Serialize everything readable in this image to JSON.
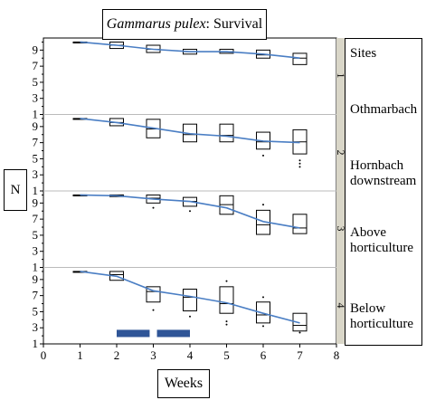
{
  "title": {
    "species": "Gammarus pulex",
    "rest": ": Survival"
  },
  "y_axis_label": "N",
  "x_axis_label": "Weeks",
  "legend": {
    "header": "Sites",
    "sites": [
      "Othmarbach",
      "Hornbach downstream",
      "Above horticulture",
      "Below horticulture"
    ]
  },
  "chart_data": {
    "type": "box",
    "x_ticks": [
      0,
      1,
      2,
      3,
      4,
      5,
      6,
      7,
      8
    ],
    "xlim": [
      0,
      8
    ],
    "y_ticks_per_panel": [
      1,
      3,
      5,
      7,
      9
    ],
    "y_tick_labels": [
      "1",
      "3",
      "5",
      "7",
      "9"
    ],
    "ylim": [
      1,
      10.5
    ],
    "panels": [
      {
        "strip_label": "1",
        "site": "Othmarbach",
        "boxes": [
          {
            "week": 1,
            "q1": 10,
            "median": 10,
            "q3": 10
          },
          {
            "week": 2,
            "q1": 9.2,
            "median": 9.6,
            "q3": 10
          },
          {
            "week": 3,
            "q1": 8.7,
            "median": 9.1,
            "q3": 9.6
          },
          {
            "week": 4,
            "q1": 8.5,
            "median": 8.8,
            "q3": 9.1
          },
          {
            "week": 5,
            "q1": 8.6,
            "median": 8.8,
            "q3": 9.1
          },
          {
            "week": 6,
            "q1": 8,
            "median": 8.4,
            "q3": 9
          },
          {
            "week": 7,
            "q1": 7.2,
            "median": 8,
            "q3": 8.6
          }
        ],
        "outliers": [],
        "trend": [
          [
            1,
            10
          ],
          [
            2,
            9.6
          ],
          [
            3,
            9.1
          ],
          [
            4,
            8.8
          ],
          [
            5,
            8.8
          ],
          [
            6,
            8.5
          ],
          [
            7,
            8
          ]
        ]
      },
      {
        "strip_label": "2",
        "site": "Hornbach downstream",
        "boxes": [
          {
            "week": 1,
            "q1": 10,
            "median": 10,
            "q3": 10
          },
          {
            "week": 2,
            "q1": 9.1,
            "median": 9.5,
            "q3": 10
          },
          {
            "week": 3,
            "q1": 7.6,
            "median": 8.7,
            "q3": 9.9
          },
          {
            "week": 4,
            "q1": 7.1,
            "median": 8,
            "q3": 9.3
          },
          {
            "week": 5,
            "q1": 7.1,
            "median": 7.9,
            "q3": 9.3
          },
          {
            "week": 6,
            "q1": 6.2,
            "median": 7.1,
            "q3": 8.3
          },
          {
            "week": 7,
            "q1": 5.6,
            "median": 7.1,
            "q3": 8.6
          }
        ],
        "outliers": [
          [
            6,
            5.4
          ],
          [
            7,
            4.8
          ],
          [
            7,
            4.4
          ],
          [
            7,
            4.0
          ]
        ],
        "trend": [
          [
            1,
            10
          ],
          [
            2,
            9.5
          ],
          [
            3,
            8.8
          ],
          [
            4,
            8.1
          ],
          [
            5,
            7.8
          ],
          [
            6,
            7.2
          ],
          [
            7,
            7
          ]
        ]
      },
      {
        "strip_label": "3",
        "site": "Above horticulture",
        "boxes": [
          {
            "week": 1,
            "q1": 10,
            "median": 10,
            "q3": 10
          },
          {
            "week": 2,
            "q1": 9.8,
            "median": 10,
            "q3": 10
          },
          {
            "week": 3,
            "q1": 9,
            "median": 9.6,
            "q3": 10
          },
          {
            "week": 4,
            "q1": 8.6,
            "median": 9.2,
            "q3": 9.7
          },
          {
            "week": 5,
            "q1": 7.6,
            "median": 8.8,
            "q3": 9.9
          },
          {
            "week": 6,
            "q1": 5.1,
            "median": 6.3,
            "q3": 8.1
          },
          {
            "week": 7,
            "q1": 5.2,
            "median": 5.9,
            "q3": 7.6
          }
        ],
        "outliers": [
          [
            3,
            8.4
          ],
          [
            4,
            8.0
          ],
          [
            6,
            8.8
          ]
        ],
        "trend": [
          [
            1,
            10
          ],
          [
            2,
            9.9
          ],
          [
            3,
            9.5
          ],
          [
            4,
            9.2
          ],
          [
            5,
            8.4
          ],
          [
            6,
            6.7
          ],
          [
            7,
            5.9
          ]
        ]
      },
      {
        "strip_label": "4",
        "site": "Below horticulture",
        "boxes": [
          {
            "week": 1,
            "q1": 10,
            "median": 10,
            "q3": 10
          },
          {
            "week": 2,
            "q1": 8.9,
            "median": 9.6,
            "q3": 10
          },
          {
            "week": 3,
            "q1": 6.2,
            "median": 7.5,
            "q3": 8.1
          },
          {
            "week": 4,
            "q1": 5.1,
            "median": 6.8,
            "q3": 7.8
          },
          {
            "week": 5,
            "q1": 4.8,
            "median": 6,
            "q3": 8.1
          },
          {
            "week": 6,
            "q1": 3.6,
            "median": 4.6,
            "q3": 6.2
          },
          {
            "week": 7,
            "q1": 2.6,
            "median": 3.3,
            "q3": 4.8
          }
        ],
        "outliers": [
          [
            3,
            5.2
          ],
          [
            4,
            4.4
          ],
          [
            5,
            3.8
          ],
          [
            5,
            3.4
          ],
          [
            5,
            8.8
          ],
          [
            6,
            6.8
          ],
          [
            6,
            3.2
          ],
          [
            7,
            2.4
          ]
        ],
        "trend": [
          [
            1,
            10
          ],
          [
            2,
            9.4
          ],
          [
            3,
            7.6
          ],
          [
            4,
            6.9
          ],
          [
            5,
            6.1
          ],
          [
            6,
            4.8
          ],
          [
            7,
            3.6
          ]
        ]
      }
    ],
    "treatment_bars": [
      {
        "start": 2,
        "end": 2.9
      },
      {
        "start": 3.1,
        "end": 4
      }
    ],
    "colors": {
      "trend_line": "#4a7ec4",
      "treatment_bar": "#2f5597",
      "separator": "#bbbbbb"
    }
  }
}
